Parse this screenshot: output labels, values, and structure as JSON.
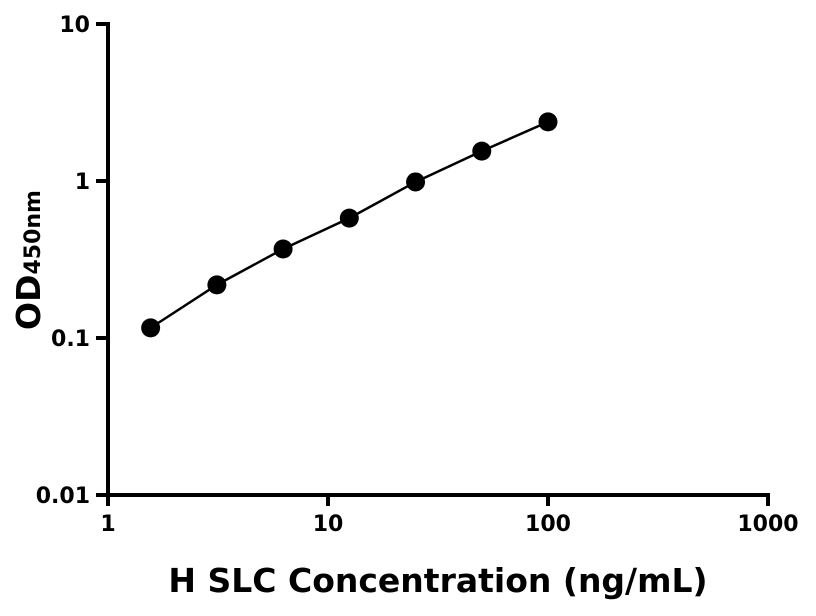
{
  "chart_data": {
    "type": "line",
    "title": "",
    "xlabel": "H SLC Concentration (ng/mL)",
    "ylabel_main": "OD",
    "ylabel_sub": "450nm",
    "x_scale": "log",
    "y_scale": "log",
    "xlim": [
      1,
      1000
    ],
    "ylim": [
      0.01,
      10
    ],
    "x_ticks": [
      1,
      10,
      100,
      1000
    ],
    "x_tick_labels": [
      "1",
      "10",
      "100",
      "1000"
    ],
    "y_ticks": [
      0.01,
      0.1,
      1,
      10
    ],
    "y_tick_labels": [
      "0.01",
      "0.1",
      "1",
      "10"
    ],
    "grid": false,
    "series": [
      {
        "x": [
          1.5625,
          3.125,
          6.25,
          12.5,
          25,
          50,
          100
        ],
        "y": [
          0.116,
          0.218,
          0.369,
          0.58,
          0.986,
          1.55,
          2.38
        ],
        "color": "#000000",
        "marker": "circle"
      }
    ]
  }
}
